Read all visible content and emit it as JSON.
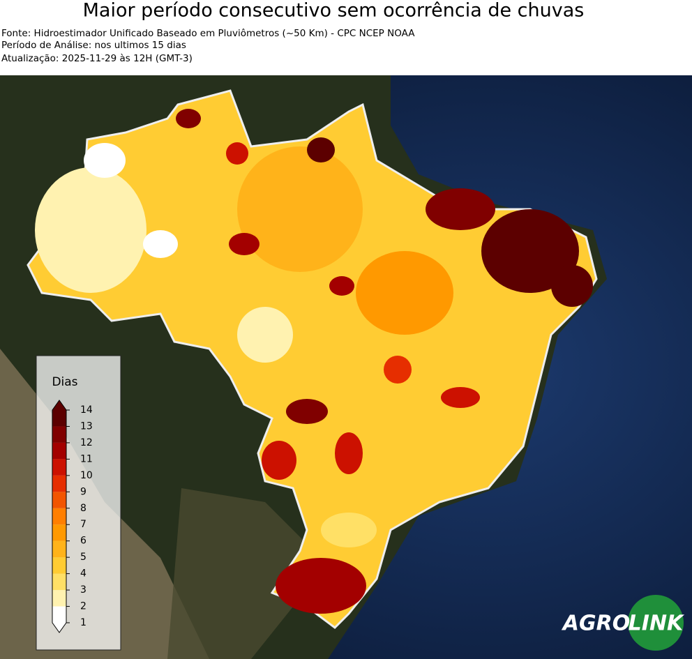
{
  "header": {
    "title": "Maior período consecutivo sem ocorrência de chuvas",
    "lines": [
      "Fonte: Hidroestimador Unificado Baseado em Pluviômetros (~50 Km) - CPC NCEP NOAA",
      "Período de Análise: nos ultimos 15 dias",
      "Atualização: 2025-11-29 às 12H (GMT-3)"
    ]
  },
  "legend": {
    "title": "Dias",
    "ticks": [
      1,
      2,
      3,
      4,
      5,
      6,
      7,
      8,
      9,
      10,
      11,
      12,
      13,
      14
    ],
    "colors": [
      "#ffffff",
      "#fff2b0",
      "#ffe066",
      "#ffcc33",
      "#ffb31a",
      "#ff9900",
      "#ff7f00",
      "#f25500",
      "#e62e00",
      "#cc1100",
      "#a30000",
      "#800000",
      "#5c0000"
    ]
  },
  "logo": {
    "left": "AGRO",
    "right": "LINK"
  }
}
